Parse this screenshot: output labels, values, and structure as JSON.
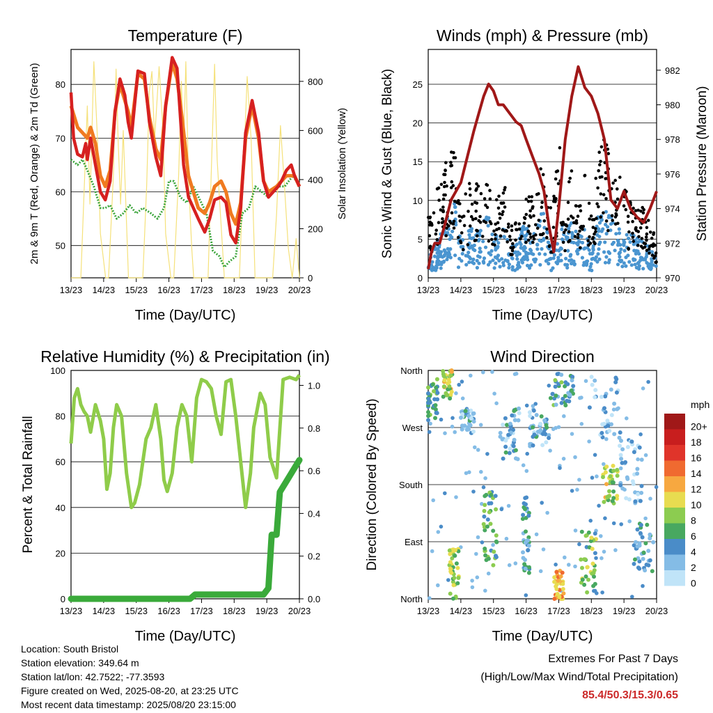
{
  "time_ticks": [
    "13/23",
    "14/23",
    "15/23",
    "16/23",
    "17/23",
    "18/23",
    "19/23",
    "20/23"
  ],
  "temperature_chart": {
    "type": "line",
    "title": "Temperature (F)",
    "xlabel": "Time (Day/UTC)",
    "ylabel": "2m & 9m T (Red, Orange) & 2m Td (Green)",
    "y2label": "Solar Insolation (Yellow)",
    "ylim": [
      44,
      86.5
    ],
    "y2lim": [
      0,
      930
    ],
    "y_ticks": [
      50,
      60,
      70,
      80
    ],
    "y2_ticks": [
      0,
      200,
      400,
      600,
      800
    ],
    "x_days": [
      0,
      7
    ],
    "colors": {
      "temp_2m": "#d62020",
      "temp_9m": "#f07a20",
      "dewpoint": "#3ca53c",
      "solar": "#f5e17a"
    },
    "series": [
      {
        "key": "temp_2m",
        "x": [
          0,
          0.08,
          0.2,
          0.35,
          0.45,
          0.5,
          0.6,
          0.75,
          0.9,
          1.05,
          1.2,
          1.35,
          1.5,
          1.65,
          1.75,
          1.85,
          2.05,
          2.25,
          2.4,
          2.6,
          2.75,
          2.9,
          3.1,
          3.25,
          3.45,
          3.6,
          3.75,
          3.9,
          4.1,
          4.25,
          4.4,
          4.6,
          4.75,
          4.9,
          5.05,
          5.2,
          5.35,
          5.55,
          5.75,
          5.9,
          6.05,
          6.2,
          6.35,
          6.45,
          6.6,
          6.75,
          6.85,
          7
        ],
        "y": [
          78.5,
          70,
          67,
          66.5,
          69,
          66,
          70,
          65,
          60,
          58.5,
          62,
          75,
          81,
          78,
          73,
          70,
          82.5,
          82,
          73,
          66.5,
          63,
          76,
          85,
          83,
          65,
          59,
          57,
          55,
          52.5,
          55,
          58.5,
          59,
          58,
          52,
          50.5,
          57,
          71,
          77,
          71,
          62,
          59,
          60,
          61,
          62,
          64,
          65,
          63,
          61
        ]
      },
      {
        "key": "temp_9m",
        "x": [
          0,
          0.2,
          0.35,
          0.5,
          0.6,
          0.75,
          0.9,
          1.05,
          1.2,
          1.35,
          1.5,
          1.75,
          1.85,
          2.05,
          2.25,
          2.4,
          2.6,
          2.75,
          2.9,
          3.1,
          3.25,
          3.4,
          3.6,
          3.75,
          3.9,
          4.1,
          4.25,
          4.4,
          4.6,
          4.75,
          4.9,
          5.05,
          5.2,
          5.35,
          5.55,
          5.75,
          5.9,
          6.05,
          6.3,
          6.6,
          6.85,
          7
        ],
        "y": [
          76,
          72,
          71,
          70,
          72,
          69,
          63,
          61,
          64,
          75,
          80,
          75,
          72,
          82,
          81,
          74,
          68,
          66,
          76,
          84,
          81,
          74,
          63,
          60,
          57,
          56,
          58,
          61,
          62,
          60,
          56,
          54,
          58,
          70,
          76,
          70,
          62,
          60,
          61,
          63,
          63,
          61
        ]
      },
      {
        "key": "dewpoint",
        "x": [
          0,
          0.2,
          0.35,
          0.5,
          0.7,
          0.9,
          1.05,
          1.2,
          1.4,
          1.6,
          1.8,
          2,
          2.2,
          2.45,
          2.65,
          2.85,
          3,
          3.15,
          3.35,
          3.55,
          3.75,
          3.95,
          4.15,
          4.35,
          4.55,
          4.7,
          4.85,
          5.05,
          5.25,
          5.45,
          5.65,
          5.85,
          6.05,
          6.3,
          6.55,
          6.8,
          7
        ],
        "y": [
          66,
          65,
          66,
          64,
          61,
          57,
          57,
          57.5,
          55,
          56,
          57.5,
          56,
          57,
          56,
          55,
          57,
          62,
          62,
          59,
          58,
          61,
          58.5,
          56,
          49,
          48,
          46,
          47,
          48,
          56,
          57,
          61,
          60,
          59,
          61,
          61,
          63,
          61
        ]
      },
      {
        "key": "solar",
        "x": [
          0,
          0.3,
          0.42,
          0.5,
          0.58,
          0.7,
          0.82,
          0.9,
          1.06,
          1.15,
          1.3,
          1.38,
          1.45,
          1.52,
          1.6,
          1.76,
          2.2,
          2.32,
          2.4,
          2.48,
          2.56,
          2.7,
          2.82,
          2.9,
          3.06,
          3.15,
          3.3,
          3.38,
          3.45,
          3.52,
          3.6,
          3.7,
          3.76,
          4.2,
          4.32,
          4.4,
          4.48,
          4.56,
          4.7,
          5.16,
          5.28,
          5.4,
          5.52,
          5.64,
          6.18,
          6.3,
          6.42,
          6.54,
          6.66,
          6.78,
          6.9,
          7
        ],
        "y": [
          0,
          0,
          420,
          700,
          300,
          880,
          540,
          180,
          0,
          0,
          420,
          850,
          540,
          300,
          600,
          0,
          0,
          380,
          760,
          840,
          560,
          860,
          600,
          180,
          0,
          0,
          420,
          800,
          520,
          880,
          400,
          120,
          0,
          0,
          520,
          870,
          480,
          300,
          0,
          0,
          420,
          820,
          560,
          0,
          0,
          260,
          620,
          380,
          120,
          0,
          160,
          0
        ]
      }
    ]
  },
  "winds_chart": {
    "type": "scatter",
    "title": "Winds (mph) & Pressure (mb)",
    "xlabel": "Time (Day/UTC)",
    "ylabel": "Sonic Wind & Gust (Blue, Black)",
    "y2label": "Station Pressure (Maroon)",
    "ylim": [
      0,
      29.5
    ],
    "y2lim": [
      970,
      983.2
    ],
    "y_ticks": [
      0,
      5,
      10,
      15,
      20,
      25
    ],
    "y2_ticks": [
      970,
      972,
      974,
      976,
      978,
      980,
      982
    ],
    "x_days": [
      0,
      7
    ],
    "colors": {
      "wind": "#4a95d0",
      "gust": "#000000",
      "pressure": "#a01818"
    },
    "pressure": {
      "x": [
        0,
        0.1,
        0.2,
        0.35,
        0.5,
        0.7,
        0.85,
        1,
        1.2,
        1.4,
        1.55,
        1.7,
        1.85,
        2,
        2.15,
        2.3,
        2.5,
        2.7,
        2.85,
        3,
        3.2,
        3.4,
        3.55,
        3.7,
        3.85,
        4,
        4.2,
        4.4,
        4.6,
        4.8,
        5,
        5.2,
        5.4,
        5.6,
        5.8,
        6,
        6.2,
        6.4,
        6.6,
        6.8,
        7
      ],
      "y": [
        970.5,
        971.5,
        972,
        972,
        973,
        974.5,
        975,
        975.5,
        977,
        978.5,
        979.5,
        980.5,
        981.2,
        980.8,
        980,
        980,
        979.5,
        979,
        978.8,
        978,
        977,
        976,
        975,
        973,
        971.5,
        974,
        978,
        980.5,
        982.2,
        981,
        980.5,
        979.5,
        978,
        974.5,
        974,
        975,
        974,
        973.5,
        973.2,
        974,
        975
      ]
    },
    "wind_envelope": {
      "x": [
        0,
        0.3,
        0.5,
        0.8,
        1,
        1.3,
        1.6,
        1.8,
        2,
        2.3,
        2.6,
        2.9,
        3.2,
        3.5,
        3.8,
        4,
        4.2,
        4.4,
        4.6,
        4.8,
        5,
        5.3,
        5.6,
        5.9,
        6.2,
        6.5,
        6.8,
        7
      ],
      "y": [
        3,
        5,
        7,
        10,
        5,
        7,
        6,
        9,
        5,
        7,
        4,
        7,
        6,
        9,
        4,
        10,
        5,
        8,
        5,
        7,
        4,
        10,
        8,
        6,
        6,
        5,
        4,
        3
      ]
    },
    "gust_envelope": {
      "x": [
        0,
        0.3,
        0.5,
        0.8,
        1,
        1.3,
        1.6,
        1.8,
        2,
        2.3,
        2.6,
        2.9,
        3.2,
        3.5,
        3.8,
        4,
        4.2,
        4.4,
        4.6,
        4.8,
        5,
        5.3,
        5.6,
        5.9,
        6.2,
        6.5,
        6.8,
        7
      ],
      "y": [
        8,
        12,
        15,
        17,
        9,
        13,
        12,
        15,
        9,
        13,
        7,
        13,
        11,
        15,
        8,
        19,
        9,
        15,
        9,
        14,
        8,
        20,
        15,
        13,
        10,
        10,
        7,
        5
      ]
    }
  },
  "humidity_chart": {
    "type": "line",
    "title": "Relative Humidity (%) & Precipitation (in)",
    "xlabel": "Time (Day/UTC)",
    "ylabel": "Percent & Total Rainfall",
    "ylim": [
      0,
      100
    ],
    "y2lim": [
      0,
      1.07
    ],
    "y_ticks": [
      0,
      20,
      40,
      60,
      80,
      100
    ],
    "y2_ticks": [
      "0.0",
      "0.2",
      "0.4",
      "0.6",
      "0.8",
      "1.0"
    ],
    "x_days": [
      0,
      7
    ],
    "colors": {
      "rh": "#8fcc4a",
      "precip": "#3aaa3a"
    },
    "series": [
      {
        "key": "rh",
        "x": [
          0,
          0.1,
          0.2,
          0.3,
          0.4,
          0.5,
          0.6,
          0.75,
          0.9,
          1,
          1.1,
          1.2,
          1.3,
          1.4,
          1.55,
          1.7,
          1.85,
          1.95,
          2.1,
          2.3,
          2.45,
          2.6,
          2.75,
          2.85,
          2.95,
          3.1,
          3.25,
          3.4,
          3.55,
          3.7,
          3.85,
          4,
          4.15,
          4.3,
          4.45,
          4.6,
          4.75,
          4.9,
          5.05,
          5.2,
          5.35,
          5.5,
          5.6,
          5.8,
          5.95,
          6.1,
          6.3,
          6.5,
          6.7,
          6.9,
          7
        ],
        "y": [
          68,
          88,
          92,
          85,
          82,
          80,
          73,
          85,
          78,
          70,
          48,
          55,
          75,
          85,
          80,
          55,
          40,
          42,
          50,
          70,
          75,
          85,
          70,
          52,
          47,
          55,
          75,
          85,
          80,
          60,
          88,
          96,
          95,
          92,
          80,
          72,
          95,
          96,
          80,
          60,
          40,
          55,
          75,
          90,
          85,
          62,
          53,
          96,
          97,
          96,
          98
        ]
      },
      {
        "key": "precip",
        "x": [
          0,
          3.65,
          3.8,
          5.9,
          6.05,
          6.15,
          6.3,
          6.4,
          6.6,
          6.8,
          7
        ],
        "y": [
          0,
          0,
          0.02,
          0.02,
          0.05,
          0.3,
          0.3,
          0.5,
          0.55,
          0.6,
          0.65
        ]
      }
    ]
  },
  "direction_chart": {
    "type": "scatter",
    "title": "Wind Direction",
    "xlabel": "Time (Day/UTC)",
    "ylabel": "Direction (Colored By Speed)",
    "y_ticks": [
      "North",
      "East",
      "South",
      "West",
      "North"
    ],
    "ylim": [
      0,
      360
    ],
    "x_days": [
      0,
      7
    ],
    "legend": {
      "title": "mph",
      "labels": [
        "20+",
        "18",
        "16",
        "14",
        "12",
        "10",
        "8",
        "6",
        "4",
        "2",
        "0"
      ],
      "colors": [
        "#a01818",
        "#c81e1e",
        "#e0342a",
        "#f06a30",
        "#f7a840",
        "#e8dc50",
        "#8ccc50",
        "#48a860",
        "#4a8cc8",
        "#84bce6",
        "#c0e4f8"
      ]
    },
    "clusters": [
      {
        "x": 0.05,
        "y": 315,
        "dx": 0.25,
        "dy": 35,
        "speed": 6
      },
      {
        "x": 0.6,
        "y": 340,
        "dx": 0.15,
        "dy": 25,
        "speed": 9
      },
      {
        "x": 1.2,
        "y": 280,
        "dx": 0.2,
        "dy": 20,
        "speed": 3
      },
      {
        "x": 0.8,
        "y": 40,
        "dx": 0.15,
        "dy": 40,
        "speed": 8
      },
      {
        "x": 1.9,
        "y": 110,
        "dx": 0.2,
        "dy": 60,
        "speed": 6
      },
      {
        "x": 2.5,
        "y": 260,
        "dx": 0.3,
        "dy": 40,
        "speed": 3
      },
      {
        "x": 3.4,
        "y": 270,
        "dx": 0.3,
        "dy": 30,
        "speed": 3
      },
      {
        "x": 3.0,
        "y": 100,
        "dx": 0.1,
        "dy": 60,
        "speed": 4
      },
      {
        "x": 4.1,
        "y": 330,
        "dx": 0.35,
        "dy": 25,
        "speed": 5
      },
      {
        "x": 4.0,
        "y": 20,
        "dx": 0.15,
        "dy": 25,
        "speed": 12
      },
      {
        "x": 4.9,
        "y": 60,
        "dx": 0.25,
        "dy": 50,
        "speed": 7
      },
      {
        "x": 5.6,
        "y": 180,
        "dx": 0.25,
        "dy": 30,
        "speed": 9
      },
      {
        "x": 5.4,
        "y": 300,
        "dx": 0.5,
        "dy": 50,
        "speed": 2
      },
      {
        "x": 6.6,
        "y": 80,
        "dx": 0.3,
        "dy": 40,
        "speed": 4
      },
      {
        "x": 6.2,
        "y": 200,
        "dx": 0.35,
        "dy": 50,
        "speed": 2
      }
    ]
  },
  "footer": {
    "location": "Location: South Bristol",
    "elevation": "Station elevation: 349.64 m",
    "latlon": "Station lat/lon: 42.7522; -77.3593",
    "created": "Figure created on Wed, 2025-08-20, at 23:25 UTC",
    "recent": "Most recent data timestamp: 2025/08/20 23:15:00",
    "extremes_title": "Extremes For Past 7 Days",
    "extremes_subtitle": "(High/Low/Max Wind/Total Precipitation)",
    "extremes_values": "85.4/50.3/15.3/0.65"
  }
}
